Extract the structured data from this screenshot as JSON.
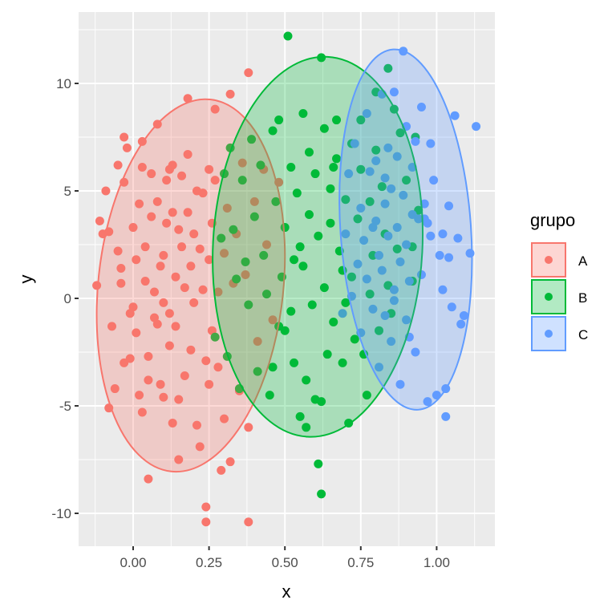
{
  "chart_data": {
    "type": "scatter",
    "title": "",
    "xlabel": "x",
    "ylabel": "y",
    "xlim": [
      -0.18,
      1.19
    ],
    "ylim": [
      -11.6,
      13.3
    ],
    "xticks": [
      0.0,
      0.25,
      0.5,
      0.75,
      1.0
    ],
    "xtick_labels": [
      "0.00",
      "0.25",
      "0.50",
      "0.75",
      "1.00"
    ],
    "yticks": [
      -10,
      -5,
      0,
      5,
      10
    ],
    "ytick_labels": [
      "-10",
      "-5",
      "0",
      "5",
      "10"
    ],
    "grid": true,
    "legend": {
      "title": "grupo",
      "position": "right",
      "entries": [
        "A",
        "B",
        "C"
      ]
    },
    "series": [
      {
        "name": "A",
        "color": "#F8766D",
        "ellipse": {
          "cx": 0.19,
          "cy": 0.6,
          "rx": 0.305,
          "ry": 8.7,
          "rotate": 6
        },
        "points": [
          [
            -0.12,
            0.6
          ],
          [
            -0.11,
            3.6
          ],
          [
            -0.09,
            5.0
          ],
          [
            -0.1,
            3.0
          ],
          [
            -0.08,
            3.1
          ],
          [
            -0.07,
            -1.3
          ],
          [
            -0.08,
            -5.1
          ],
          [
            -0.06,
            -4.2
          ],
          [
            -0.05,
            6.2
          ],
          [
            -0.05,
            2.2
          ],
          [
            -0.04,
            1.4
          ],
          [
            -0.04,
            0.7
          ],
          [
            -0.03,
            7.5
          ],
          [
            -0.03,
            5.4
          ],
          [
            -0.03,
            -3.0
          ],
          [
            -0.02,
            7.0
          ],
          [
            -0.01,
            -0.7
          ],
          [
            -0.01,
            -2.8
          ],
          [
            0.0,
            3.3
          ],
          [
            0.0,
            -0.4
          ],
          [
            0.01,
            1.8
          ],
          [
            0.01,
            -1.6
          ],
          [
            0.02,
            4.4
          ],
          [
            0.02,
            -4.5
          ],
          [
            0.03,
            7.3
          ],
          [
            0.03,
            6.1
          ],
          [
            0.03,
            -5.3
          ],
          [
            0.04,
            0.8
          ],
          [
            0.04,
            2.4
          ],
          [
            0.05,
            -8.4
          ],
          [
            0.05,
            -3.8
          ],
          [
            0.05,
            -2.7
          ],
          [
            0.06,
            3.8
          ],
          [
            0.06,
            5.8
          ],
          [
            0.07,
            0.3
          ],
          [
            0.07,
            -0.9
          ],
          [
            0.08,
            4.5
          ],
          [
            0.08,
            8.1
          ],
          [
            0.08,
            -1.2
          ],
          [
            0.09,
            -4.0
          ],
          [
            0.09,
            1.5
          ],
          [
            0.1,
            2.0
          ],
          [
            0.1,
            -0.2
          ],
          [
            0.1,
            -4.6
          ],
          [
            0.11,
            5.5
          ],
          [
            0.11,
            3.5
          ],
          [
            0.12,
            6.0
          ],
          [
            0.12,
            -0.7
          ],
          [
            0.12,
            -2.2
          ],
          [
            0.13,
            -5.8
          ],
          [
            0.13,
            6.2
          ],
          [
            0.13,
            4.0
          ],
          [
            0.14,
            1.0
          ],
          [
            0.14,
            -1.3
          ],
          [
            0.15,
            3.2
          ],
          [
            0.15,
            -7.5
          ],
          [
            0.15,
            -4.7
          ],
          [
            0.16,
            5.7
          ],
          [
            0.16,
            2.4
          ],
          [
            0.17,
            0.5
          ],
          [
            0.17,
            -3.6
          ],
          [
            0.18,
            9.3
          ],
          [
            0.18,
            6.7
          ],
          [
            0.18,
            4.0
          ],
          [
            0.19,
            1.5
          ],
          [
            0.19,
            -2.4
          ],
          [
            0.2,
            3.0
          ],
          [
            0.2,
            -0.2
          ],
          [
            0.21,
            5.0
          ],
          [
            0.21,
            -5.9
          ],
          [
            0.22,
            -6.9
          ],
          [
            0.22,
            2.3
          ],
          [
            0.23,
            4.9
          ],
          [
            0.23,
            0.4
          ],
          [
            0.24,
            -9.7
          ],
          [
            0.24,
            -10.4
          ],
          [
            0.24,
            -2.9
          ],
          [
            0.25,
            6.0
          ],
          [
            0.25,
            1.8
          ],
          [
            0.25,
            -4.0
          ],
          [
            0.26,
            3.5
          ],
          [
            0.26,
            -1.5
          ],
          [
            0.27,
            8.8
          ],
          [
            0.27,
            5.5
          ],
          [
            0.28,
            0.3
          ],
          [
            0.28,
            -3.2
          ],
          [
            0.29,
            -8.0
          ],
          [
            0.3,
            -5.6
          ],
          [
            0.3,
            2.1
          ],
          [
            0.31,
            4.2
          ],
          [
            0.32,
            9.5
          ],
          [
            0.32,
            -7.6
          ],
          [
            0.33,
            0.7
          ],
          [
            0.34,
            3.0
          ],
          [
            0.35,
            -4.3
          ],
          [
            0.36,
            6.3
          ],
          [
            0.37,
            1.1
          ],
          [
            0.38,
            10.5
          ],
          [
            0.38,
            -6.0
          ],
          [
            0.38,
            -10.4
          ],
          [
            0.4,
            4.5
          ],
          [
            0.41,
            -2.0
          ],
          [
            0.43,
            6.0
          ],
          [
            0.44,
            2.5
          ],
          [
            0.46,
            -1.0
          ],
          [
            0.48,
            5.4
          ]
        ]
      },
      {
        "name": "B",
        "color": "#00BA38",
        "ellipse": {
          "cx": 0.608,
          "cy": 2.4,
          "rx": 0.345,
          "ry": 8.85,
          "rotate": 3
        },
        "points": [
          [
            0.27,
            -1.8
          ],
          [
            0.29,
            2.8
          ],
          [
            0.3,
            5.8
          ],
          [
            0.31,
            -2.7
          ],
          [
            0.32,
            7.0
          ],
          [
            0.33,
            3.2
          ],
          [
            0.34,
            0.9
          ],
          [
            0.35,
            -4.2
          ],
          [
            0.36,
            5.5
          ],
          [
            0.37,
            1.7
          ],
          [
            0.38,
            -0.3
          ],
          [
            0.39,
            7.4
          ],
          [
            0.4,
            3.8
          ],
          [
            0.41,
            -3.4
          ],
          [
            0.42,
            6.2
          ],
          [
            0.43,
            2.0
          ],
          [
            0.44,
            0.2
          ],
          [
            0.45,
            -4.5
          ],
          [
            0.46,
            7.8
          ],
          [
            0.47,
            4.5
          ],
          [
            0.48,
            8.3
          ],
          [
            0.49,
            1.0
          ],
          [
            0.5,
            -1.5
          ],
          [
            0.5,
            3.3
          ],
          [
            0.51,
            12.2
          ],
          [
            0.52,
            6.1
          ],
          [
            0.52,
            -0.6
          ],
          [
            0.53,
            -3.0
          ],
          [
            0.54,
            4.9
          ],
          [
            0.55,
            2.4
          ],
          [
            0.55,
            -5.5
          ],
          [
            0.56,
            8.6
          ],
          [
            0.56,
            1.5
          ],
          [
            0.57,
            -6.0
          ],
          [
            0.58,
            6.8
          ],
          [
            0.58,
            3.9
          ],
          [
            0.59,
            -0.3
          ],
          [
            0.6,
            -4.7
          ],
          [
            0.6,
            5.8
          ],
          [
            0.61,
            2.9
          ],
          [
            0.61,
            -7.7
          ],
          [
            0.62,
            -9.1
          ],
          [
            0.62,
            11.2
          ],
          [
            0.63,
            7.9
          ],
          [
            0.63,
            0.5
          ],
          [
            0.64,
            -2.6
          ],
          [
            0.65,
            5.1
          ],
          [
            0.65,
            3.5
          ],
          [
            0.66,
            -1.1
          ],
          [
            0.67,
            8.3
          ],
          [
            0.67,
            6.5
          ],
          [
            0.68,
            2.2
          ],
          [
            0.69,
            -3.0
          ],
          [
            0.7,
            -0.2
          ],
          [
            0.7,
            4.6
          ],
          [
            0.71,
            -5.8
          ],
          [
            0.72,
            7.2
          ],
          [
            0.72,
            1.0
          ],
          [
            0.73,
            -1.9
          ],
          [
            0.74,
            3.7
          ],
          [
            0.75,
            6.0
          ],
          [
            0.75,
            8.3
          ],
          [
            0.76,
            -2.6
          ],
          [
            0.77,
            -4.5
          ],
          [
            0.78,
            0.2
          ],
          [
            0.78,
            4.5
          ],
          [
            0.79,
            2.0
          ],
          [
            0.8,
            9.6
          ],
          [
            0.8,
            6.9
          ],
          [
            0.81,
            -1.5
          ],
          [
            0.82,
            5.2
          ],
          [
            0.83,
            3.0
          ],
          [
            0.84,
            10.7
          ],
          [
            0.84,
            0.6
          ],
          [
            0.85,
            -0.7
          ],
          [
            0.86,
            8.8
          ],
          [
            0.87,
            2.3
          ],
          [
            0.88,
            7.7
          ],
          [
            0.9,
            5.5
          ],
          [
            0.92,
            2.4
          ],
          [
            0.92,
            0.8
          ],
          [
            0.93,
            7.5
          ],
          [
            0.94,
            4.1
          ],
          [
            0.57,
            -3.8
          ],
          [
            0.62,
            -4.8
          ],
          [
            0.46,
            -3.2
          ],
          [
            0.48,
            -1.3
          ],
          [
            0.53,
            1.8
          ],
          [
            0.66,
            6.1
          ],
          [
            0.69,
            1.3
          ]
        ]
      },
      {
        "name": "C",
        "color": "#619CFF",
        "ellipse": {
          "cx": 0.898,
          "cy": 3.2,
          "rx": 0.215,
          "ry": 8.4,
          "rotate": -4
        },
        "points": [
          [
            0.69,
            -0.7
          ],
          [
            0.7,
            3.0
          ],
          [
            0.71,
            5.8
          ],
          [
            0.72,
            0.1
          ],
          [
            0.73,
            7.2
          ],
          [
            0.74,
            1.6
          ],
          [
            0.75,
            -1.6
          ],
          [
            0.75,
            4.2
          ],
          [
            0.76,
            2.7
          ],
          [
            0.77,
            8.6
          ],
          [
            0.77,
            0.9
          ],
          [
            0.78,
            5.9
          ],
          [
            0.79,
            -0.5
          ],
          [
            0.8,
            3.6
          ],
          [
            0.8,
            6.4
          ],
          [
            0.81,
            2.0
          ],
          [
            0.81,
            -3.2
          ],
          [
            0.82,
            9.5
          ],
          [
            0.82,
            1.3
          ],
          [
            0.83,
            4.4
          ],
          [
            0.83,
            -0.8
          ],
          [
            0.84,
            7.0
          ],
          [
            0.84,
            2.9
          ],
          [
            0.85,
            5.1
          ],
          [
            0.85,
            -2.0
          ],
          [
            0.86,
            9.6
          ],
          [
            0.86,
            0.4
          ],
          [
            0.87,
            3.3
          ],
          [
            0.87,
            6.6
          ],
          [
            0.88,
            1.7
          ],
          [
            0.88,
            -4.0
          ],
          [
            0.89,
            4.8
          ],
          [
            0.89,
            11.5
          ],
          [
            0.9,
            8.0
          ],
          [
            0.9,
            2.5
          ],
          [
            0.91,
            0.8
          ],
          [
            0.91,
            -1.8
          ],
          [
            0.92,
            6.1
          ],
          [
            0.92,
            3.9
          ],
          [
            0.93,
            7.3
          ],
          [
            0.93,
            -2.5
          ],
          [
            0.94,
            3.7
          ],
          [
            0.95,
            1.1
          ],
          [
            0.95,
            8.9
          ],
          [
            0.96,
            4.4
          ],
          [
            0.97,
            -4.8
          ],
          [
            0.98,
            2.9
          ],
          [
            0.99,
            5.5
          ],
          [
            1.0,
            -4.5
          ],
          [
            1.01,
            2.0
          ],
          [
            1.02,
            0.4
          ],
          [
            1.03,
            -4.2
          ],
          [
            1.03,
            -5.5
          ],
          [
            1.04,
            1.9
          ],
          [
            1.05,
            -0.4
          ],
          [
            1.06,
            8.5
          ],
          [
            1.07,
            2.8
          ],
          [
            1.08,
            -1.2
          ],
          [
            1.09,
            -0.8
          ],
          [
            1.11,
            2.1
          ],
          [
            1.13,
            8.0
          ],
          [
            0.96,
            3.7
          ],
          [
            0.97,
            3.5
          ],
          [
            0.9,
            -1.0
          ],
          [
            0.86,
            -0.1
          ],
          [
            0.79,
            3.3
          ],
          [
            0.83,
            5.6
          ],
          [
            0.98,
            7.2
          ],
          [
            1.02,
            3.0
          ],
          [
            1.04,
            4.3
          ]
        ]
      }
    ]
  },
  "axes": {
    "x_title": "x",
    "y_title": "y"
  },
  "legend": {
    "title": "grupo",
    "items": [
      {
        "label": "A",
        "color": "#F8766D"
      },
      {
        "label": "B",
        "color": "#00BA38"
      },
      {
        "label": "C",
        "color": "#619CFF"
      }
    ]
  },
  "theme": {
    "panel_bg": "#EBEBEB",
    "grid_major": "#FFFFFF",
    "tick_color": "#333333",
    "tick_label_color": "#4D4D4D"
  }
}
